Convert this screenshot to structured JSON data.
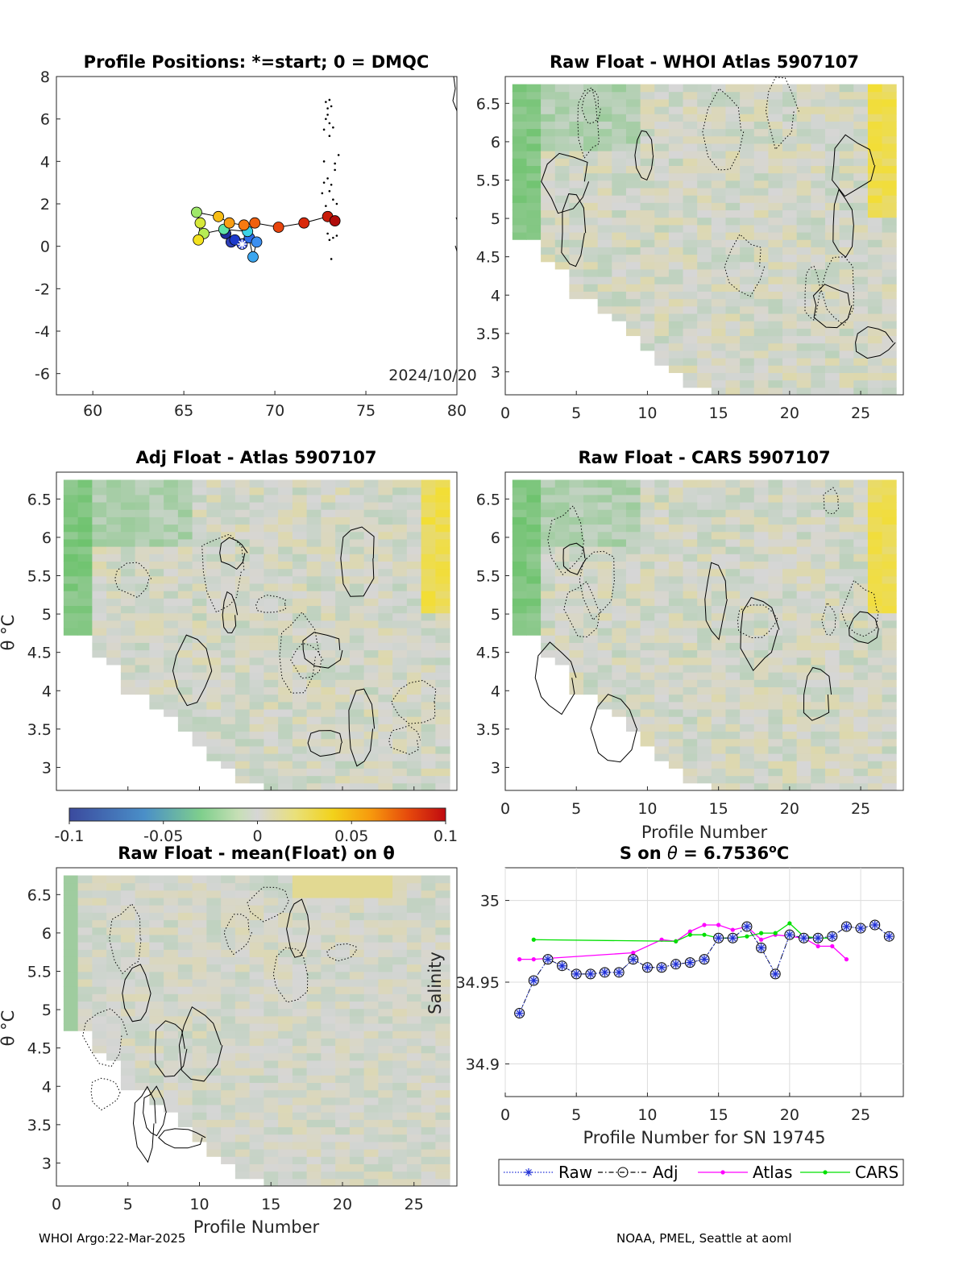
{
  "footer": {
    "left": "WHOI Argo:22-Mar-2025",
    "right": "NOAA, PMEL, Seattle at aoml"
  },
  "colorbar": {
    "ticks": [
      "-0.1",
      "-0.05",
      "0",
      "0.05",
      "0.1"
    ],
    "range": [
      -0.1,
      0.1
    ]
  },
  "chart_data": [
    {
      "type": "scatter",
      "title": "Profile Positions: *=start; 0 = DMQC",
      "annotation": "2024/10/20",
      "xlim": [
        58,
        80
      ],
      "ylim": [
        -7,
        8
      ],
      "xticks": [
        "60",
        "65",
        "70",
        "75",
        "80"
      ],
      "yticks": [
        "8",
        "6",
        "4",
        "2",
        "0",
        "-2",
        "-4",
        "-6"
      ],
      "track": [
        {
          "x": 68.2,
          "y": 0.1,
          "color": "#3a4fd6"
        },
        {
          "x": 67.6,
          "y": 0.2,
          "color": "#2e3fb8"
        },
        {
          "x": 67.3,
          "y": 0.6,
          "color": "#1f2fa0"
        },
        {
          "x": 67.8,
          "y": 0.3,
          "color": "#1d3acb"
        },
        {
          "x": 68.6,
          "y": 0.4,
          "color": "#2d6be8"
        },
        {
          "x": 69.0,
          "y": 0.2,
          "color": "#3c8ff0"
        },
        {
          "x": 68.8,
          "y": -0.5,
          "color": "#3ca6ef"
        },
        {
          "x": 68.5,
          "y": 0.7,
          "color": "#3cd2e6"
        },
        {
          "x": 67.2,
          "y": 0.8,
          "color": "#61e3a6"
        },
        {
          "x": 66.1,
          "y": 0.6,
          "color": "#b6ec55"
        },
        {
          "x": 65.8,
          "y": 0.3,
          "color": "#f3e21f"
        },
        {
          "x": 65.9,
          "y": 1.1,
          "color": "#d6e83a"
        },
        {
          "x": 65.7,
          "y": 1.6,
          "color": "#9fe86a"
        },
        {
          "x": 66.9,
          "y": 1.4,
          "color": "#f7bd16"
        },
        {
          "x": 67.5,
          "y": 1.1,
          "color": "#f99d12"
        },
        {
          "x": 68.3,
          "y": 1.0,
          "color": "#f67a10"
        },
        {
          "x": 68.9,
          "y": 1.1,
          "color": "#f0600f"
        },
        {
          "x": 70.2,
          "y": 0.9,
          "color": "#e8440d"
        },
        {
          "x": 71.6,
          "y": 1.1,
          "color": "#d9290b"
        },
        {
          "x": 72.9,
          "y": 1.4,
          "color": "#c91c0a"
        },
        {
          "x": 73.3,
          "y": 1.2,
          "color": "#b00d0b"
        }
      ],
      "start": {
        "x": 68.2,
        "y": 0.1
      },
      "historical_points": [
        {
          "x": 72.8,
          "y": 6.8
        },
        {
          "x": 72.9,
          "y": 6.5
        },
        {
          "x": 73.1,
          "y": 6.6
        },
        {
          "x": 72.8,
          "y": 6.0
        },
        {
          "x": 73.0,
          "y": 5.8
        },
        {
          "x": 72.7,
          "y": 5.5
        },
        {
          "x": 73.2,
          "y": 5.6
        },
        {
          "x": 73.0,
          "y": 5.2
        },
        {
          "x": 72.9,
          "y": 6.2
        },
        {
          "x": 73.0,
          "y": 6.9
        },
        {
          "x": 73.3,
          "y": 3.6
        },
        {
          "x": 73.5,
          "y": 4.3
        },
        {
          "x": 72.7,
          "y": 4.0
        },
        {
          "x": 72.9,
          "y": 3.2
        },
        {
          "x": 73.1,
          "y": 2.9
        },
        {
          "x": 72.6,
          "y": 2.5
        },
        {
          "x": 73.2,
          "y": 2.2
        },
        {
          "x": 72.8,
          "y": 1.9
        },
        {
          "x": 73.0,
          "y": 1.6
        },
        {
          "x": 73.4,
          "y": 2.0
        },
        {
          "x": 72.9,
          "y": 0.6
        },
        {
          "x": 73.2,
          "y": 0.4
        },
        {
          "x": 73.0,
          "y": 0.3
        },
        {
          "x": 73.4,
          "y": 0.5
        },
        {
          "x": 73.1,
          "y": -0.6
        },
        {
          "x": 72.7,
          "y": 3.0
        },
        {
          "x": 73.3,
          "y": 3.9
        },
        {
          "x": 73.0,
          "y": 2.6
        }
      ]
    },
    {
      "type": "heatmap",
      "title": "Raw Float - WHOI Atlas  5907107",
      "xlim": [
        0,
        28
      ],
      "ylim": [
        2.7,
        6.85
      ],
      "xticks": [
        "0",
        "5",
        "10",
        "15",
        "20",
        "25"
      ],
      "yticks": [
        "6.5",
        "6",
        "5.5",
        "5",
        "4.5",
        "4",
        "3.5",
        "3"
      ],
      "xlabel": "",
      "ylabel": ""
    },
    {
      "type": "heatmap",
      "title": "Adj Float - Atlas  5907107",
      "xlim": [
        0,
        28
      ],
      "ylim": [
        2.7,
        6.85
      ],
      "yticks": [
        "6.5",
        "6",
        "5.5",
        "5",
        "4.5",
        "4",
        "3.5",
        "3"
      ],
      "xlabel": "",
      "ylabel": "θ °C"
    },
    {
      "type": "heatmap",
      "title": "Raw Float - CARS  5907107",
      "xlim": [
        0,
        28
      ],
      "ylim": [
        2.7,
        6.85
      ],
      "xticks": [
        "0",
        "5",
        "10",
        "15",
        "20",
        "25"
      ],
      "yticks": [
        "6.5",
        "6",
        "5.5",
        "5",
        "4.5",
        "4",
        "3.5",
        "3"
      ],
      "xlabel": "Profile Number",
      "ylabel": ""
    },
    {
      "type": "heatmap",
      "title": "Raw Float - mean(Float) on θ",
      "xlim": [
        0,
        28
      ],
      "ylim": [
        2.7,
        6.85
      ],
      "xticks": [
        "0",
        "5",
        "10",
        "15",
        "20",
        "25"
      ],
      "yticks": [
        "6.5",
        "6",
        "5.5",
        "5",
        "4.5",
        "4",
        "3.5",
        "3"
      ],
      "xlabel": "Profile Number",
      "ylabel": "θ °C"
    },
    {
      "type": "line",
      "title": "S on θ = 6.7536°C",
      "xlabel": "Profile Number for SN 19745",
      "ylabel": "Salinity",
      "xlim": [
        0,
        28
      ],
      "ylim": [
        34.88,
        35.02
      ],
      "xticks": [
        "0",
        "5",
        "10",
        "15",
        "20",
        "25"
      ],
      "yticks": [
        "35",
        "34.95",
        "34.9"
      ],
      "grid": true,
      "legend_position": "bottom",
      "series": [
        {
          "name": "Raw",
          "color": "#1f2fd6",
          "x": [
            1,
            2,
            3,
            4,
            5,
            6,
            7,
            8,
            9,
            10,
            11,
            12,
            13,
            14,
            15,
            16,
            17,
            18,
            19,
            20,
            21,
            22,
            23,
            24,
            25,
            26,
            27
          ],
          "y": [
            34.931,
            34.951,
            34.964,
            34.96,
            34.955,
            34.955,
            34.956,
            34.956,
            34.964,
            34.959,
            34.959,
            34.961,
            34.962,
            34.964,
            34.977,
            34.977,
            34.984,
            34.971,
            34.955,
            34.979,
            34.977,
            34.977,
            34.978,
            34.984,
            34.983,
            34.985,
            34.978
          ]
        },
        {
          "name": "Adj",
          "color": "#000000",
          "x": [
            1,
            2,
            3,
            4,
            5,
            6,
            7,
            8,
            9,
            10,
            11,
            12,
            13,
            14,
            15,
            16,
            17,
            18,
            19,
            20,
            21,
            22,
            23,
            24,
            25,
            26,
            27
          ],
          "y": [
            34.931,
            34.951,
            34.964,
            34.96,
            34.955,
            34.955,
            34.956,
            34.956,
            34.964,
            34.959,
            34.959,
            34.961,
            34.962,
            34.964,
            34.977,
            34.977,
            34.984,
            34.971,
            34.955,
            34.979,
            34.977,
            34.977,
            34.978,
            34.984,
            34.983,
            34.985,
            34.978
          ]
        },
        {
          "name": "Atlas",
          "color": "#ff00ff",
          "x": [
            1,
            2,
            9,
            11,
            12,
            13,
            14,
            15,
            16,
            17,
            18,
            19,
            20,
            21,
            22,
            23,
            24
          ],
          "y": [
            34.964,
            34.964,
            34.968,
            34.976,
            34.975,
            34.981,
            34.985,
            34.985,
            34.982,
            34.984,
            34.976,
            34.979,
            34.978,
            34.977,
            34.972,
            34.972,
            34.964
          ]
        },
        {
          "name": "CARS",
          "color": "#00e000",
          "x": [
            2,
            12,
            13,
            14,
            15,
            16,
            17,
            18,
            19,
            20,
            21,
            22,
            23
          ],
          "y": [
            34.976,
            34.975,
            34.979,
            34.979,
            34.977,
            34.977,
            34.978,
            34.98,
            34.98,
            34.986,
            34.978,
            34.977,
            34.977
          ]
        }
      ]
    }
  ]
}
